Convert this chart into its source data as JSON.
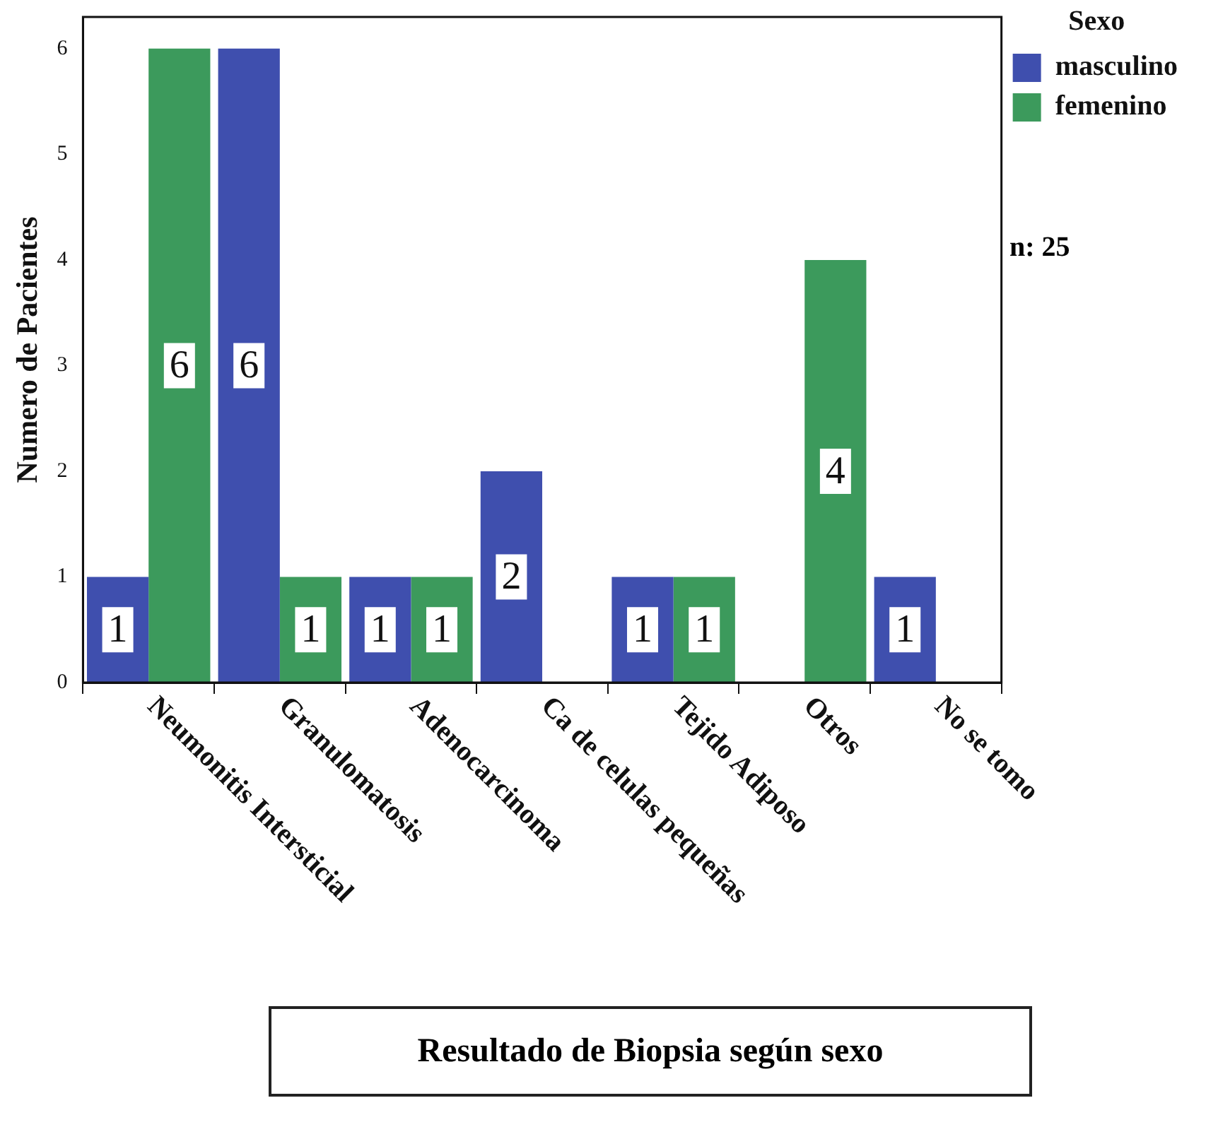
{
  "chart_data": {
    "type": "bar",
    "title": "Resultado de Biopsia según sexo",
    "ylabel": "Numero de Pacientes",
    "legend_title": "Sexo",
    "legend": "top right",
    "categories": [
      "Neumonitis Intersticial",
      "Granulomatosis",
      "Adenocarcinoma",
      "Ca de celulas pequeñas",
      "Tejido Adiposo",
      "Otros",
      "No se tomo"
    ],
    "series": [
      {
        "name": "masculino",
        "color": "#3f4fae",
        "values": [
          1,
          6,
          1,
          2,
          1,
          null,
          1
        ]
      },
      {
        "name": "femenino",
        "color": "#3c9a5c",
        "values": [
          6,
          1,
          1,
          null,
          1,
          4,
          null
        ]
      }
    ],
    "ylim": [
      0,
      6.3
    ],
    "yticks": [
      0,
      1,
      2,
      3,
      4,
      5,
      6
    ],
    "data_labels": true,
    "annotations": [
      "n: 25"
    ]
  }
}
